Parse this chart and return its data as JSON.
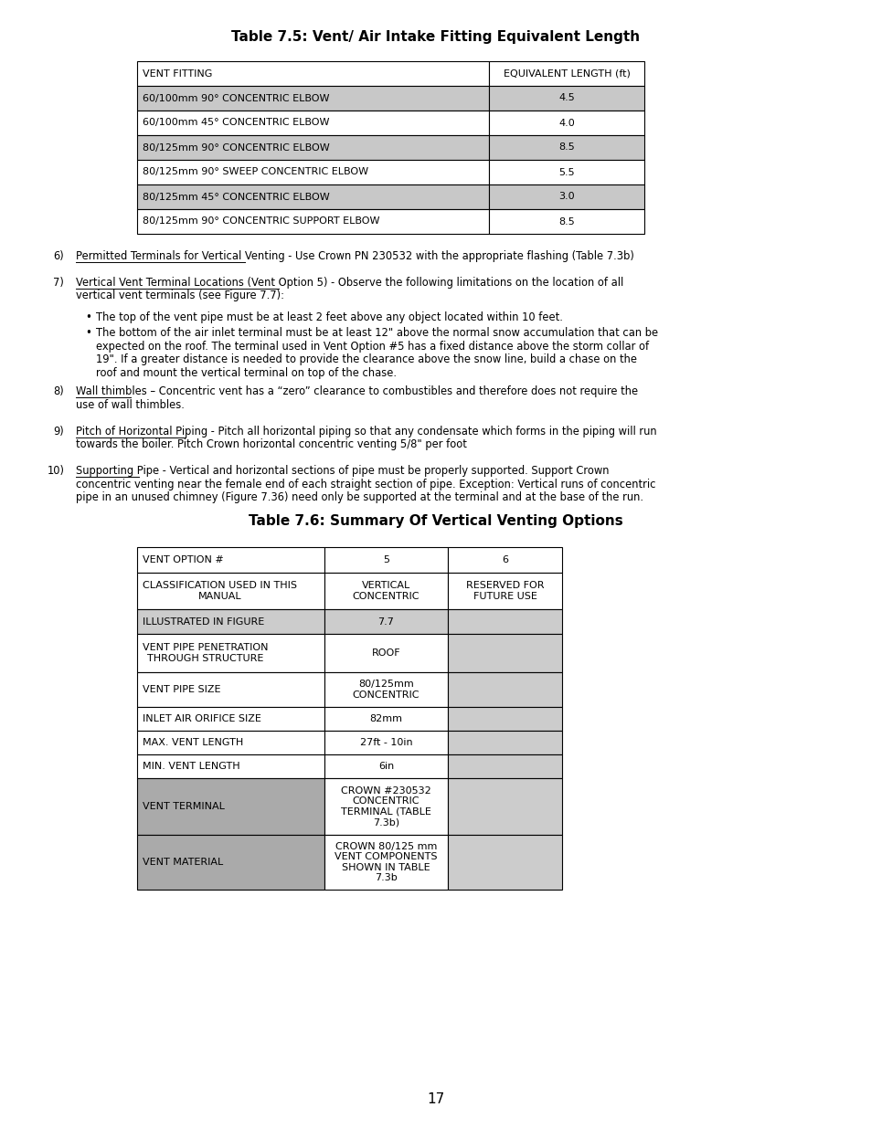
{
  "bg_color": "#ffffff",
  "text_color": "#000000",
  "page_number": "17",
  "table1_title": "Table 7.5: Vent/ Air Intake Fitting Equivalent Length",
  "table1_headers": [
    "VENT FITTING",
    "EQUIVALENT LENGTH (ft)"
  ],
  "table1_rows": [
    [
      "60/100mm 90° CONCENTRIC ELBOW",
      "4.5"
    ],
    [
      "60/100mm 45° CONCENTRIC ELBOW",
      "4.0"
    ],
    [
      "80/125mm 90° CONCENTRIC ELBOW",
      "8.5"
    ],
    [
      "80/125mm 90° SWEEP CONCENTRIC ELBOW",
      "5.5"
    ],
    [
      "80/125mm 45° CONCENTRIC ELBOW",
      "3.0"
    ],
    [
      "80/125mm 90° CONCENTRIC SUPPORT ELBOW",
      "8.5"
    ]
  ],
  "table1_shaded_rows": [
    0,
    2,
    4
  ],
  "table2_title": "Table 7.6: Summary Of Vertical Venting Options",
  "table2_col_headers": [
    "VENT OPTION #",
    "5",
    "6"
  ],
  "table2_rows": [
    [
      "CLASSIFICATION USED IN THIS\nMANUAL",
      "VERTICAL\nCONCENTRIC",
      "RESERVED FOR\nFUTURE USE"
    ],
    [
      "ILLUSTRATED IN FIGURE",
      "7.7",
      ""
    ],
    [
      "VENT PIPE PENETRATION\nTHROUGH STRUCTURE",
      "ROOF",
      ""
    ],
    [
      "VENT PIPE SIZE",
      "80/125mm\nCONCENTRIC",
      ""
    ],
    [
      "INLET AIR ORIFICE SIZE",
      "82mm",
      ""
    ],
    [
      "MAX. VENT LENGTH",
      "27ft - 10in",
      ""
    ],
    [
      "MIN. VENT LENGTH",
      "6in",
      ""
    ],
    [
      "VENT TERMINAL",
      "CROWN #230532\nCONCENTRIC\nTERMINAL (TABLE\n7.3b)",
      ""
    ],
    [
      "VENT MATERIAL",
      "CROWN 80/125 mm\nVENT COMPONENTS\nSHOWN IN TABLE\n7.3b",
      ""
    ]
  ]
}
